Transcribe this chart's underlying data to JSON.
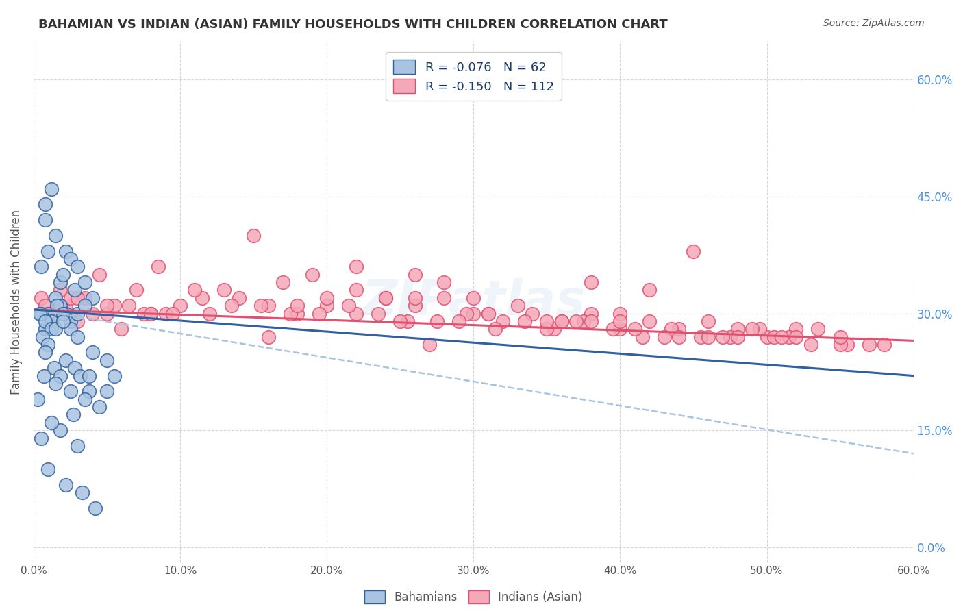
{
  "title": "BAHAMIAN VS INDIAN (ASIAN) FAMILY HOUSEHOLDS WITH CHILDREN CORRELATION CHART",
  "source": "Source: ZipAtlas.com",
  "ylabel": "Family Households with Children",
  "xlabel_ticks": [
    "0.0%",
    "10.0%",
    "20.0%",
    "30.0%",
    "40.0%",
    "50.0%",
    "60.0%"
  ],
  "ylabel_ticks": [
    "0.0%",
    "15.0%",
    "30.0%",
    "45.0%",
    "60.0%"
  ],
  "xlim": [
    0.0,
    0.6
  ],
  "ylim": [
    -0.02,
    0.65
  ],
  "legend_r_blue": "R = -0.076",
  "legend_n_blue": "N = 62",
  "legend_r_pink": "R = -0.150",
  "legend_n_pink": "N = 112",
  "blue_color": "#a8c4e0",
  "pink_color": "#f4a8b8",
  "blue_line_color": "#3060a0",
  "pink_line_color": "#e05070",
  "dashed_line_color": "#a8c4e0",
  "watermark": "ZIPatlas",
  "bahamians_x": [
    0.008,
    0.012,
    0.008,
    0.01,
    0.015,
    0.005,
    0.018,
    0.022,
    0.025,
    0.02,
    0.03,
    0.028,
    0.035,
    0.04,
    0.015,
    0.01,
    0.005,
    0.012,
    0.018,
    0.008,
    0.022,
    0.025,
    0.03,
    0.035,
    0.004,
    0.008,
    0.012,
    0.016,
    0.02,
    0.025,
    0.006,
    0.01,
    0.015,
    0.02,
    0.03,
    0.04,
    0.05,
    0.055,
    0.008,
    0.014,
    0.018,
    0.022,
    0.028,
    0.032,
    0.038,
    0.003,
    0.007,
    0.015,
    0.025,
    0.035,
    0.045,
    0.005,
    0.018,
    0.03,
    0.042,
    0.01,
    0.022,
    0.033,
    0.012,
    0.027,
    0.038,
    0.05
  ],
  "bahamians_y": [
    0.44,
    0.46,
    0.42,
    0.38,
    0.4,
    0.36,
    0.34,
    0.38,
    0.37,
    0.35,
    0.36,
    0.33,
    0.34,
    0.32,
    0.32,
    0.3,
    0.3,
    0.29,
    0.31,
    0.28,
    0.3,
    0.29,
    0.3,
    0.31,
    0.3,
    0.29,
    0.28,
    0.31,
    0.3,
    0.28,
    0.27,
    0.26,
    0.28,
    0.29,
    0.27,
    0.25,
    0.24,
    0.22,
    0.25,
    0.23,
    0.22,
    0.24,
    0.23,
    0.22,
    0.2,
    0.19,
    0.22,
    0.21,
    0.2,
    0.19,
    0.18,
    0.14,
    0.15,
    0.13,
    0.05,
    0.1,
    0.08,
    0.07,
    0.16,
    0.17,
    0.22,
    0.2
  ],
  "indians_x": [
    0.005,
    0.008,
    0.012,
    0.018,
    0.022,
    0.03,
    0.035,
    0.04,
    0.05,
    0.06,
    0.07,
    0.08,
    0.09,
    0.1,
    0.12,
    0.14,
    0.16,
    0.18,
    0.2,
    0.22,
    0.24,
    0.26,
    0.28,
    0.3,
    0.32,
    0.34,
    0.36,
    0.38,
    0.4,
    0.42,
    0.44,
    0.46,
    0.48,
    0.5,
    0.52,
    0.025,
    0.055,
    0.075,
    0.095,
    0.115,
    0.135,
    0.155,
    0.175,
    0.195,
    0.215,
    0.235,
    0.255,
    0.275,
    0.295,
    0.315,
    0.335,
    0.355,
    0.375,
    0.395,
    0.415,
    0.435,
    0.455,
    0.475,
    0.495,
    0.515,
    0.535,
    0.555,
    0.26,
    0.3,
    0.45,
    0.42,
    0.38,
    0.55,
    0.505,
    0.35,
    0.28,
    0.15,
    0.19,
    0.05,
    0.08,
    0.11,
    0.085,
    0.22,
    0.33,
    0.4,
    0.49,
    0.58,
    0.03,
    0.065,
    0.13,
    0.18,
    0.24,
    0.29,
    0.36,
    0.43,
    0.51,
    0.57,
    0.045,
    0.17,
    0.31,
    0.46,
    0.22,
    0.38,
    0.52,
    0.41,
    0.26,
    0.35,
    0.47,
    0.53,
    0.2,
    0.4,
    0.25,
    0.44,
    0.31,
    0.37,
    0.55,
    0.48,
    0.16,
    0.27
  ],
  "indians_y": [
    0.32,
    0.31,
    0.3,
    0.33,
    0.31,
    0.29,
    0.32,
    0.3,
    0.3,
    0.28,
    0.33,
    0.3,
    0.3,
    0.31,
    0.3,
    0.32,
    0.31,
    0.3,
    0.31,
    0.3,
    0.32,
    0.31,
    0.32,
    0.3,
    0.29,
    0.3,
    0.29,
    0.3,
    0.28,
    0.29,
    0.28,
    0.29,
    0.28,
    0.27,
    0.28,
    0.32,
    0.31,
    0.3,
    0.3,
    0.32,
    0.31,
    0.31,
    0.3,
    0.3,
    0.31,
    0.3,
    0.29,
    0.29,
    0.3,
    0.28,
    0.29,
    0.28,
    0.29,
    0.28,
    0.27,
    0.28,
    0.27,
    0.27,
    0.28,
    0.27,
    0.28,
    0.26,
    0.35,
    0.32,
    0.38,
    0.33,
    0.29,
    0.26,
    0.27,
    0.28,
    0.34,
    0.4,
    0.35,
    0.31,
    0.3,
    0.33,
    0.36,
    0.33,
    0.31,
    0.3,
    0.28,
    0.26,
    0.32,
    0.31,
    0.33,
    0.31,
    0.32,
    0.29,
    0.29,
    0.27,
    0.27,
    0.26,
    0.35,
    0.34,
    0.3,
    0.27,
    0.36,
    0.34,
    0.27,
    0.28,
    0.32,
    0.29,
    0.27,
    0.26,
    0.32,
    0.29,
    0.29,
    0.27,
    0.3,
    0.29,
    0.27,
    0.27,
    0.27,
    0.26
  ],
  "blue_trend_x": [
    0.0,
    0.6
  ],
  "blue_trend_y": [
    0.305,
    0.22
  ],
  "pink_trend_x": [
    0.0,
    0.6
  ],
  "pink_trend_y": [
    0.305,
    0.265
  ],
  "dashed_trend_x": [
    0.0,
    0.6
  ],
  "dashed_trend_y": [
    0.305,
    0.12
  ],
  "background_color": "#ffffff",
  "grid_color": "#cccccc",
  "title_color": "#333333",
  "axis_label_color": "#555555",
  "right_tick_color": "#4a90d9",
  "watermark_color": "#d0e0f0",
  "watermark_alpha": 0.35
}
